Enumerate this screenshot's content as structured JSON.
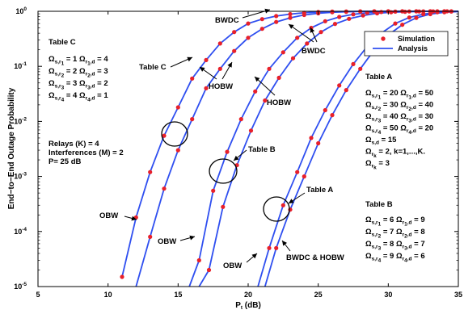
{
  "chart_data": {
    "type": "line",
    "xlabel": "P_t (dB)",
    "ylabel": "End-to-End Outage Probability",
    "xlim": [
      5,
      35
    ],
    "ylim": [
      1e-05,
      1
    ],
    "yscale": "log",
    "grid": false,
    "x_ticks": [
      "5",
      "10",
      "15",
      "20",
      "25",
      "30",
      "35"
    ],
    "y_ticks": [
      "10^-5",
      "10^-4",
      "10^-3",
      "10^-2",
      "10^-1",
      "10^0"
    ],
    "legend": {
      "position": "top-right",
      "entries": [
        {
          "label": "Simulation",
          "marker": "circle",
          "color": "#e8202a"
        },
        {
          "label": "Analysis",
          "line": true,
          "color": "#2f4ff0"
        }
      ]
    },
    "series": [
      {
        "color": "#2f4ff0",
        "x": [
          11,
          12,
          13,
          14,
          15,
          16,
          17,
          18,
          19,
          20,
          21,
          22,
          23,
          24,
          25,
          26,
          27,
          28,
          29,
          30,
          31,
          32,
          33,
          34,
          35
        ],
        "y": [
          1.5e-05,
          0.00018,
          0.0012,
          0.0055,
          0.018,
          0.06,
          0.13,
          0.26,
          0.42,
          0.6,
          0.72,
          0.82,
          0.89,
          0.94,
          0.97,
          0.985,
          0.993,
          0.997,
          0.999,
          1,
          1,
          1,
          1,
          1,
          1
        ]
      },
      {
        "color": "#2f4ff0",
        "x": [
          12,
          13,
          14,
          15,
          16,
          17,
          18,
          19,
          20,
          21,
          22,
          23,
          24,
          25,
          26,
          27,
          28,
          29,
          30,
          31,
          32,
          33,
          34,
          35
        ],
        "y": [
          1e-05,
          8e-05,
          0.0006,
          0.003,
          0.011,
          0.04,
          0.09,
          0.19,
          0.33,
          0.48,
          0.64,
          0.76,
          0.86,
          0.92,
          0.96,
          0.98,
          0.992,
          0.997,
          0.999,
          1,
          1,
          1,
          1,
          1
        ]
      },
      {
        "color": "#2f4ff0",
        "x": [
          15.8,
          16.5,
          17.5,
          18.5,
          19.5,
          20.5,
          21.5,
          22.5,
          23.5,
          24.5,
          25.5,
          26.5,
          27.5,
          28.5,
          29.5,
          30.5,
          31.5,
          32.5,
          33.5,
          34.5,
          35
        ],
        "y": [
          1e-05,
          3e-05,
          0.00055,
          0.0028,
          0.011,
          0.035,
          0.09,
          0.18,
          0.33,
          0.5,
          0.66,
          0.79,
          0.88,
          0.94,
          0.97,
          0.985,
          0.994,
          0.998,
          1,
          1,
          1
        ]
      },
      {
        "color": "#2f4ff0",
        "x": [
          16.5,
          17.2,
          18.2,
          19.2,
          20.2,
          21.2,
          22.2,
          23.2,
          24.2,
          25.2,
          26.2,
          27.2,
          28.2,
          29.2,
          30.2,
          31.2,
          32.2,
          33.2,
          34.2,
          35
        ],
        "y": [
          1e-05,
          2e-05,
          0.00028,
          0.0016,
          0.0068,
          0.024,
          0.062,
          0.14,
          0.26,
          0.42,
          0.59,
          0.73,
          0.84,
          0.92,
          0.96,
          0.98,
          0.993,
          0.998,
          1,
          1
        ]
      },
      {
        "color": "#2f4ff0",
        "x": [
          20.7,
          21.5,
          22.5,
          23.5,
          24.5,
          25.5,
          26.5,
          27.5,
          28.5,
          29.5,
          30.5,
          31.5,
          32.5,
          33.5,
          34.5,
          35
        ],
        "y": [
          1e-05,
          5e-05,
          0.0003,
          0.0012,
          0.005,
          0.016,
          0.045,
          0.11,
          0.23,
          0.4,
          0.6,
          0.77,
          0.89,
          0.96,
          0.99,
          1
        ]
      },
      {
        "color": "#2f4ff0",
        "x": [
          21.2,
          22,
          23,
          24,
          25,
          26,
          27,
          28,
          29,
          30,
          31,
          32,
          33,
          34,
          35
        ],
        "y": [
          1e-05,
          5e-05,
          0.00025,
          0.001,
          0.004,
          0.013,
          0.037,
          0.09,
          0.2,
          0.37,
          0.57,
          0.76,
          0.89,
          0.96,
          0.99
        ]
      }
    ],
    "annotations": [
      "BWDC",
      "BWDC",
      "Table C",
      "HOBW",
      "HOBW",
      "Table B",
      "Table A",
      "OBW",
      "OBW",
      "OBW",
      "BWDC & HOBW"
    ],
    "text_blocks": {
      "table_c": {
        "title": "Table C",
        "lines": [
          [
            [
              "Ω",
              "s,r",
              "1"
            ],
            [
              "= 1 Ω",
              "r",
              "1",
              ",d"
            ],
            [
              "= 4",
              "",
              ""
            ]
          ],
          [
            [
              "Ω",
              "s,r",
              "2"
            ],
            [
              "= 2 Ω",
              "r",
              "2",
              ",d"
            ],
            [
              "= 3",
              "",
              ""
            ]
          ],
          [
            [
              "Ω",
              "s,r",
              "3"
            ],
            [
              "= 3 Ω",
              "r",
              "3",
              ",d"
            ],
            [
              "= 2",
              "",
              ""
            ]
          ],
          [
            [
              "Ω",
              "s,r",
              "4"
            ],
            [
              "= 4 Ω",
              "r",
              "4",
              ",d"
            ],
            [
              "= 1",
              "",
              ""
            ]
          ]
        ]
      },
      "params": [
        "Relays (K) = 4",
        "Interferences (M) = 2",
        "P= 25 dB"
      ],
      "table_a": {
        "title": "Table A",
        "lines": [
          [
            [
              "Ω",
              "s,r",
              "1"
            ],
            [
              "= 20 Ω",
              "r",
              "1",
              ",d"
            ],
            [
              "= 50",
              "",
              ""
            ]
          ],
          [
            [
              "Ω",
              "s,r",
              "2"
            ],
            [
              "= 30 Ω",
              "r",
              "2",
              ",d"
            ],
            [
              "= 40",
              "",
              ""
            ]
          ],
          [
            [
              "Ω",
              "s,r",
              "3"
            ],
            [
              "= 40 Ω",
              "r",
              "3",
              ",d"
            ],
            [
              "= 30",
              "",
              ""
            ]
          ],
          [
            [
              "Ω",
              "s,r",
              "4"
            ],
            [
              "= 50 Ω",
              "r",
              "4",
              ",d"
            ],
            [
              "= 20",
              "",
              ""
            ]
          ],
          [
            [
              "Ω",
              "s,d",
              ""
            ],
            [
              "= 15",
              "",
              ""
            ]
          ],
          [
            [
              "Ω",
              "r",
              "k"
            ],
            [
              "= 2, k=1,...,K.",
              "",
              ""
            ]
          ],
          [
            [
              "Ω",
              "r",
              "k"
            ],
            [
              "= 3",
              "",
              ""
            ]
          ]
        ]
      },
      "table_b": {
        "title": "Table B",
        "lines": [
          [
            [
              "Ω",
              "s,r",
              "1"
            ],
            [
              "= 6 Ω",
              "r",
              "1",
              ",d"
            ],
            [
              "= 9",
              "",
              ""
            ]
          ],
          [
            [
              "Ω",
              "s,r",
              "2"
            ],
            [
              "= 7 Ω",
              "r",
              "2",
              ",d"
            ],
            [
              "= 8",
              "",
              ""
            ]
          ],
          [
            [
              "Ω",
              "s,r",
              "3"
            ],
            [
              "= 8 Ω",
              "r",
              "3",
              ",d"
            ],
            [
              "= 7",
              "",
              ""
            ]
          ],
          [
            [
              "Ω",
              "s,r",
              "4"
            ],
            [
              "= 9 Ω",
              "r",
              "4",
              ",d"
            ],
            [
              "= 6",
              "",
              ""
            ]
          ]
        ]
      }
    }
  }
}
